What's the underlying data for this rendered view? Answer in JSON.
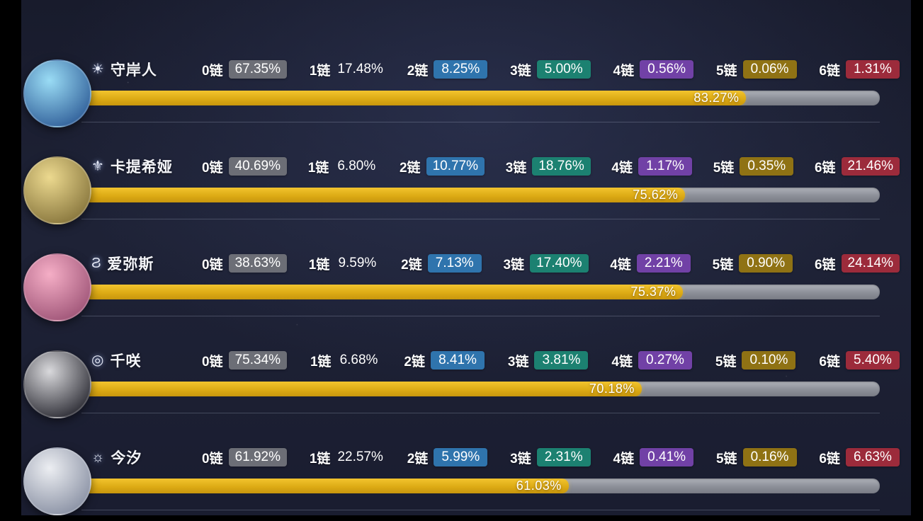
{
  "chart_data": {
    "type": "bar",
    "unit": "%",
    "categories": [
      "守岸人",
      "卡提希娅",
      "爱弥斯",
      "千咲",
      "今汐"
    ],
    "series": [
      {
        "name": "0链",
        "values": [
          67.35,
          40.69,
          38.63,
          75.34,
          61.92
        ]
      },
      {
        "name": "1链",
        "values": [
          17.48,
          6.8,
          9.59,
          6.68,
          22.57
        ]
      },
      {
        "name": "2链",
        "values": [
          8.25,
          10.77,
          7.13,
          8.41,
          5.99
        ]
      },
      {
        "name": "3链",
        "values": [
          5.0,
          18.76,
          17.4,
          3.81,
          2.31
        ]
      },
      {
        "name": "4链",
        "values": [
          0.56,
          1.17,
          2.21,
          0.27,
          0.41
        ]
      },
      {
        "name": "5链",
        "values": [
          0.06,
          0.35,
          0.9,
          0.1,
          0.16
        ]
      },
      {
        "name": "6链",
        "values": [
          1.31,
          21.46,
          24.14,
          5.4,
          6.63
        ]
      }
    ],
    "progress_values": [
      83.27,
      75.62,
      75.37,
      70.18,
      61.03
    ],
    "legend_position": "inline",
    "grid": false
  },
  "columns": [
    {
      "label": "0链",
      "badge": "#6c6e76"
    },
    {
      "label": "1链",
      "badge": "none"
    },
    {
      "label": "2链",
      "badge": "#2f74ad"
    },
    {
      "label": "3链",
      "badge": "#1c8171"
    },
    {
      "label": "4链",
      "badge": "#7141a6"
    },
    {
      "label": "5链",
      "badge": "#8f7214"
    },
    {
      "label": "6链",
      "badge": "#9c2b3b"
    }
  ],
  "rows": [
    {
      "name": "守岸人",
      "icon": "☀",
      "values": [
        "67.35%",
        "17.48%",
        "8.25%",
        "5.00%",
        "0.56%",
        "0.06%",
        "1.31%"
      ],
      "bar_label": "83.27%",
      "bar_value": 83.27,
      "avatar_colors": [
        "#9adcf5",
        "#37679f"
      ]
    },
    {
      "name": "卡提希娅",
      "icon": "⚜",
      "values": [
        "40.69%",
        "6.80%",
        "10.77%",
        "18.76%",
        "1.17%",
        "0.35%",
        "21.46%"
      ],
      "bar_label": "75.62%",
      "bar_value": 75.62,
      "avatar_colors": [
        "#ecd98f",
        "#8d7b41"
      ]
    },
    {
      "name": "爱弥斯",
      "icon": "Ϩ",
      "values": [
        "38.63%",
        "9.59%",
        "7.13%",
        "17.40%",
        "2.21%",
        "0.90%",
        "24.14%"
      ],
      "bar_label": "75.37%",
      "bar_value": 75.37,
      "avatar_colors": [
        "#f5aec6",
        "#a45a7c"
      ]
    },
    {
      "name": "千咲",
      "icon": "◎",
      "values": [
        "75.34%",
        "6.68%",
        "8.41%",
        "3.81%",
        "0.27%",
        "0.10%",
        "5.40%"
      ],
      "bar_label": "70.18%",
      "bar_value": 70.18,
      "avatar_colors": [
        "#d9d9dc",
        "#36363e"
      ]
    },
    {
      "name": "今汐",
      "icon": "☼",
      "values": [
        "61.92%",
        "22.57%",
        "5.99%",
        "2.31%",
        "0.41%",
        "0.16%",
        "6.63%"
      ],
      "bar_label": "61.03%",
      "bar_value": 61.03,
      "avatar_colors": [
        "#eceef2",
        "#8f96a8"
      ]
    }
  ],
  "colors": {
    "bar_fill": "#ddab15",
    "bar_track": "#8c8f98",
    "background": "#1e2236"
  }
}
